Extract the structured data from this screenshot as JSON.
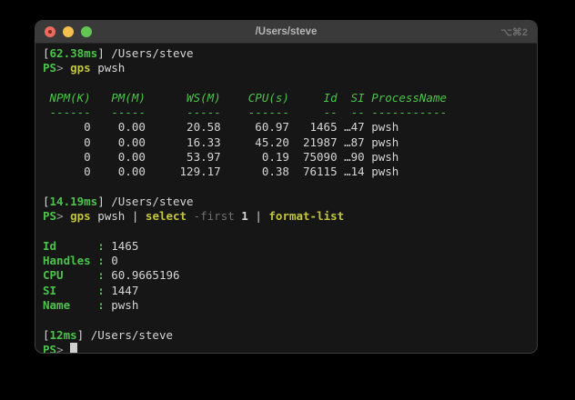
{
  "window": {
    "title": "/Users/steve",
    "shortcut": "⌥⌘2"
  },
  "palette": {
    "desktop_bg": "#000000",
    "terminal_bg": "#161616",
    "titlebar_bg": "#3a3a3a",
    "green": "#4cc24c",
    "command_yellow": "#c1c43e",
    "dim_gray": "#6f6f6f",
    "foreground": "#d5d5d5",
    "traffic_red": "#ec6a5e",
    "traffic_yellow": "#f5bf4f",
    "traffic_green": "#62c554"
  },
  "term": {
    "sp": " ",
    "prompt": {
      "ps": "PS",
      "gt": ">"
    },
    "b1": {
      "lb": "[",
      "time": "62.38ms",
      "rest": "] /Users/steve",
      "cmd": "gps",
      "args": " pwsh"
    },
    "table": {
      "columns": [
        "NPM(K)",
        "PM(M)",
        "WS(M)",
        "CPU(s)",
        "Id",
        "SI",
        "ProcessName"
      ],
      "cells": [
        [
          "0",
          "0.00",
          "20.58",
          "60.97",
          "1465",
          "…47",
          "pwsh"
        ],
        [
          "0",
          "0.00",
          "16.33",
          "45.20",
          "21987",
          "…87",
          "pwsh"
        ],
        [
          "0",
          "0.00",
          "53.97",
          "0.19",
          "75090",
          "…90",
          "pwsh"
        ],
        [
          "0",
          "0.00",
          "129.17",
          "0.38",
          "76115",
          "…14",
          "pwsh"
        ]
      ],
      "header_text": " NPM(K)   PM(M)      WS(M)    CPU(s)     Id  SI ProcessName",
      "underline_text": " ------   -----      -----    ------     --  -- -----------",
      "rows_text": [
        "      0    0.00      20.58     60.97   1465 …47 pwsh",
        "      0    0.00      16.33     45.20  21987 …87 pwsh",
        "      0    0.00      53.97      0.19  75090 …90 pwsh",
        "      0    0.00     129.17      0.38  76115 …14 pwsh"
      ]
    },
    "b2": {
      "lb": "[",
      "time": "14.19ms",
      "rest": "] /Users/steve",
      "cmd1": "gps",
      "mid1": " pwsh | ",
      "cmd2": "select",
      "param": " -first",
      "num": " 1",
      "mid2": " | ",
      "cmd3": "format-list"
    },
    "list": [
      {
        "label": "Id      :",
        "value": " 1465"
      },
      {
        "label": "Handles :",
        "value": " 0"
      },
      {
        "label": "CPU     :",
        "value": " 60.9665196"
      },
      {
        "label": "SI      :",
        "value": " 1447"
      },
      {
        "label": "Name    :",
        "value": " pwsh"
      }
    ],
    "b3": {
      "lb": "[",
      "time": "12ms",
      "rest": "] /Users/steve"
    }
  }
}
